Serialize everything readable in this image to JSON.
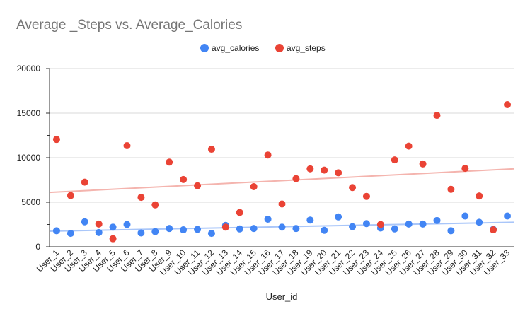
{
  "chart_data": {
    "type": "scatter",
    "title": "Average _Steps vs. Average_Calories",
    "xlabel": "User_id",
    "ylabel": "",
    "ylim": [
      0,
      20000
    ],
    "yticks": [
      "0",
      "5000",
      "10000",
      "15000",
      "20000"
    ],
    "grid": true,
    "legend_position": "top",
    "categories": [
      "User_1",
      "User_2",
      "User_3",
      "User_4",
      "User_5",
      "User_6",
      "User_7",
      "User_8",
      "User_9",
      "User_10",
      "User_11",
      "User_12",
      "User_13",
      "User_14",
      "User_15",
      "User_16",
      "User_17",
      "User_18",
      "User_19",
      "User_20",
      "User_21",
      "User_22",
      "User_23",
      "User_24",
      "User_25",
      "User_26",
      "User_27",
      "User_28",
      "User_29",
      "User_30",
      "User_31",
      "User_32",
      "User_33"
    ],
    "series": [
      {
        "name": "avg_calories",
        "color": "#4285f4",
        "values": [
          1800,
          1500,
          2800,
          1600,
          2200,
          2500,
          1550,
          1700,
          2050,
          1900,
          1950,
          1500,
          2400,
          2000,
          2050,
          3100,
          2200,
          2050,
          3000,
          1850,
          3350,
          2250,
          2600,
          2100,
          2000,
          2550,
          2550,
          2950,
          1800,
          3450,
          2750,
          1950,
          3450
        ],
        "trendline": {
          "start": 1750,
          "end": 2750,
          "color": "#a9c6f9"
        }
      },
      {
        "name": "avg_steps",
        "color": "#ea4335",
        "values": [
          12050,
          5750,
          7250,
          2550,
          900,
          11350,
          5550,
          4700,
          9500,
          7550,
          6850,
          10950,
          2200,
          3850,
          6750,
          10300,
          4800,
          7650,
          8750,
          8600,
          8300,
          6650,
          5650,
          2500,
          9750,
          11300,
          9300,
          14750,
          6450,
          8800,
          5700,
          1900,
          15950
        ],
        "trendline": {
          "start": 6100,
          "end": 8750,
          "color": "#f4b4ae"
        }
      }
    ]
  }
}
